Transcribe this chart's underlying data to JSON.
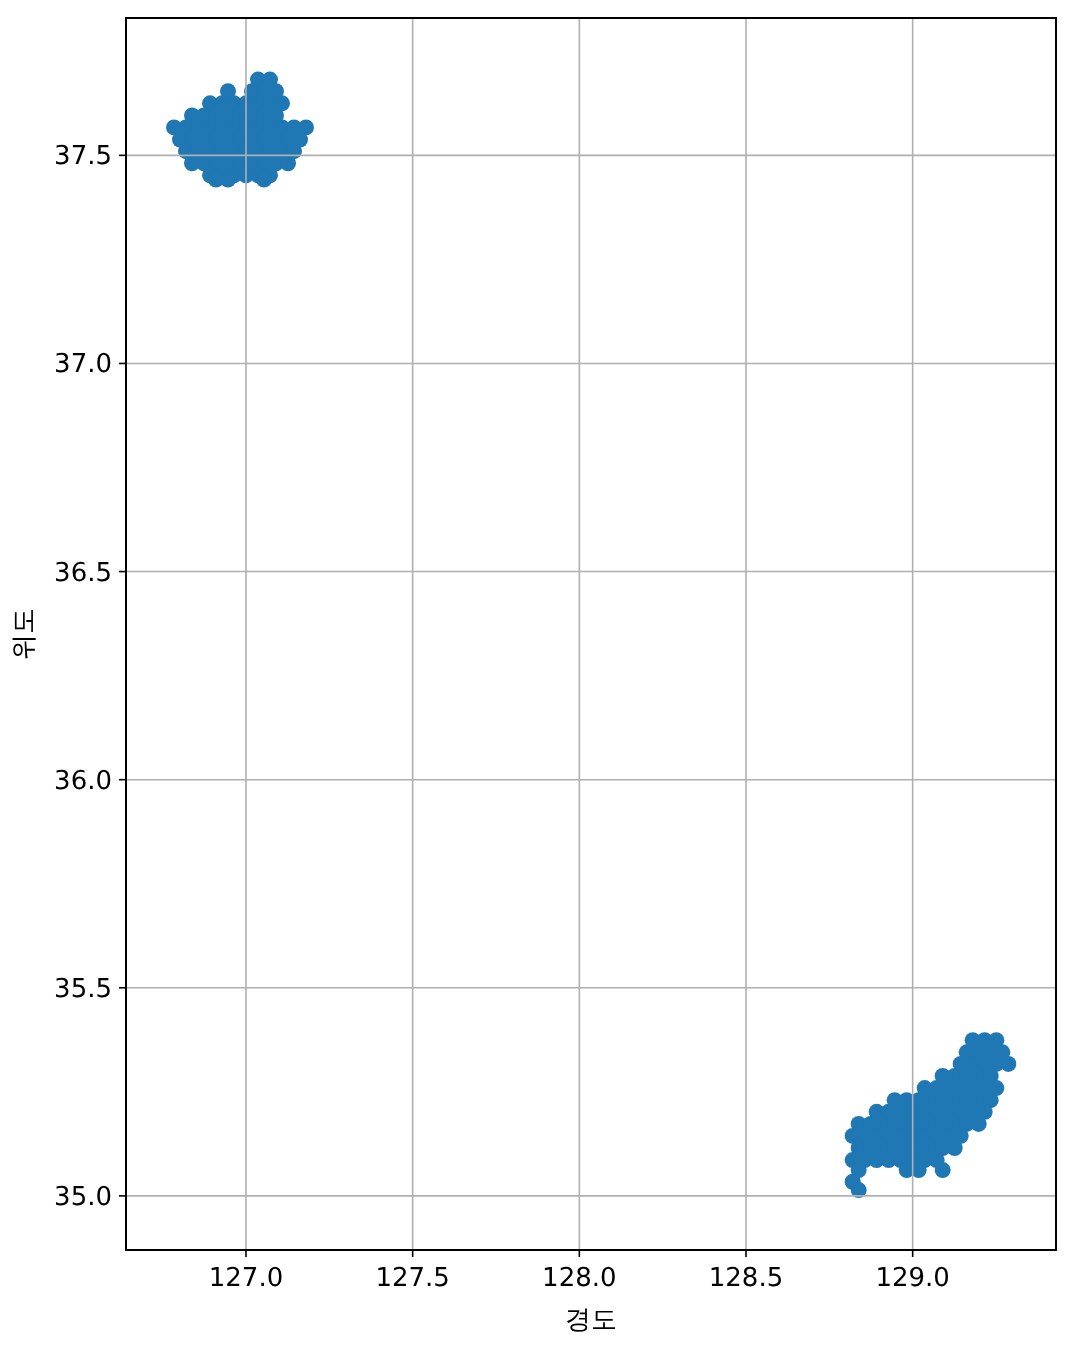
{
  "chart_data": {
    "type": "scatter",
    "xlabel": "경도",
    "ylabel": "위도",
    "marker": "circle",
    "grid": true,
    "xlim": [
      126.64,
      129.43
    ],
    "ylim": [
      34.87,
      37.83
    ],
    "xticks": [
      {
        "value": 127,
        "label": "127.0"
      },
      {
        "value": 127.5,
        "label": "127.5"
      },
      {
        "value": 128,
        "label": "128.0"
      },
      {
        "value": 128.5,
        "label": "128.5"
      },
      {
        "value": 129,
        "label": "129.0"
      }
    ],
    "yticks": [
      {
        "value": 35,
        "label": "35.0"
      },
      {
        "value": 35.5,
        "label": "35.5"
      },
      {
        "value": 36,
        "label": "36.0"
      },
      {
        "value": 36.5,
        "label": "36.5"
      },
      {
        "value": 37,
        "label": "37.0"
      },
      {
        "value": 37.5,
        "label": "37.5"
      }
    ],
    "series": [
      {
        "color": "#1f77b4",
        "x": [
          127.036,
          127.072,
          126.946,
          127.018,
          127.054,
          127.09,
          126.892,
          126.928,
          126.964,
          127.0,
          127.036,
          127.072,
          127.108,
          126.838,
          126.874,
          126.91,
          126.946,
          126.982,
          127.018,
          127.054,
          127.09,
          126.784,
          126.82,
          126.856,
          126.892,
          126.928,
          126.964,
          127.0,
          127.036,
          127.072,
          127.108,
          127.144,
          127.18,
          126.802,
          126.838,
          126.874,
          126.91,
          126.946,
          126.982,
          127.018,
          127.054,
          127.09,
          127.126,
          127.162,
          126.82,
          126.856,
          126.892,
          126.928,
          126.964,
          127.0,
          127.036,
          127.072,
          127.108,
          127.144,
          126.838,
          126.874,
          126.91,
          126.946,
          126.982,
          127.018,
          127.054,
          127.09,
          127.126,
          126.892,
          126.928,
          126.964,
          127.0,
          127.036,
          127.072,
          126.91,
          126.946,
          127.054
        ],
        "values": [
          37.682,
          37.682,
          37.654,
          37.654,
          37.654,
          37.654,
          37.625,
          37.625,
          37.625,
          37.625,
          37.625,
          37.625,
          37.625,
          37.596,
          37.596,
          37.596,
          37.596,
          37.596,
          37.596,
          37.596,
          37.596,
          37.567,
          37.567,
          37.567,
          37.567,
          37.567,
          37.567,
          37.567,
          37.567,
          37.567,
          37.567,
          37.567,
          37.567,
          37.538,
          37.538,
          37.538,
          37.538,
          37.538,
          37.538,
          37.538,
          37.538,
          37.538,
          37.538,
          37.538,
          37.51,
          37.51,
          37.51,
          37.51,
          37.51,
          37.51,
          37.51,
          37.51,
          37.51,
          37.51,
          37.481,
          37.481,
          37.481,
          37.481,
          37.481,
          37.481,
          37.481,
          37.481,
          37.481,
          37.452,
          37.452,
          37.452,
          37.452,
          37.452,
          37.452,
          37.442,
          37.442,
          37.442
        ]
      },
      {
        "color": "#1f77b4",
        "x": [
          129.18,
          129.216,
          129.251,
          129.162,
          129.198,
          129.234,
          129.269,
          129.144,
          129.18,
          129.216,
          129.251,
          129.287,
          129.09,
          129.126,
          129.162,
          129.198,
          129.234,
          129.036,
          129.072,
          129.108,
          129.144,
          129.18,
          129.216,
          129.251,
          128.946,
          128.982,
          129.018,
          129.054,
          129.09,
          129.126,
          129.162,
          129.198,
          129.234,
          128.892,
          128.928,
          128.964,
          129.0,
          129.036,
          129.072,
          129.108,
          129.144,
          129.18,
          129.216,
          128.838,
          128.874,
          128.91,
          128.946,
          128.982,
          129.018,
          129.054,
          129.09,
          129.126,
          129.162,
          129.198,
          128.82,
          128.856,
          128.892,
          128.928,
          128.964,
          129.0,
          129.036,
          129.072,
          129.108,
          129.144,
          128.838,
          128.874,
          128.91,
          128.946,
          128.982,
          129.018,
          129.054,
          129.09,
          129.126,
          128.82,
          128.856,
          128.892,
          128.928,
          128.964,
          129.0,
          129.036,
          129.072,
          128.838,
          128.982,
          129.018,
          129.09,
          128.82,
          128.838
        ],
        "values": [
          35.374,
          35.374,
          35.374,
          35.345,
          35.345,
          35.345,
          35.345,
          35.317,
          35.317,
          35.317,
          35.317,
          35.317,
          35.288,
          35.288,
          35.288,
          35.288,
          35.288,
          35.259,
          35.259,
          35.259,
          35.259,
          35.259,
          35.259,
          35.259,
          35.23,
          35.23,
          35.23,
          35.23,
          35.23,
          35.23,
          35.23,
          35.23,
          35.23,
          35.202,
          35.202,
          35.202,
          35.202,
          35.202,
          35.202,
          35.202,
          35.202,
          35.202,
          35.202,
          35.173,
          35.173,
          35.173,
          35.173,
          35.173,
          35.173,
          35.173,
          35.173,
          35.173,
          35.173,
          35.173,
          35.144,
          35.144,
          35.144,
          35.144,
          35.144,
          35.144,
          35.144,
          35.144,
          35.144,
          35.144,
          35.115,
          35.115,
          35.115,
          35.115,
          35.115,
          35.115,
          35.115,
          35.115,
          35.115,
          35.086,
          35.086,
          35.086,
          35.086,
          35.086,
          35.086,
          35.086,
          35.086,
          35.062,
          35.062,
          35.062,
          35.062,
          35.034,
          35.014
        ]
      }
    ]
  }
}
